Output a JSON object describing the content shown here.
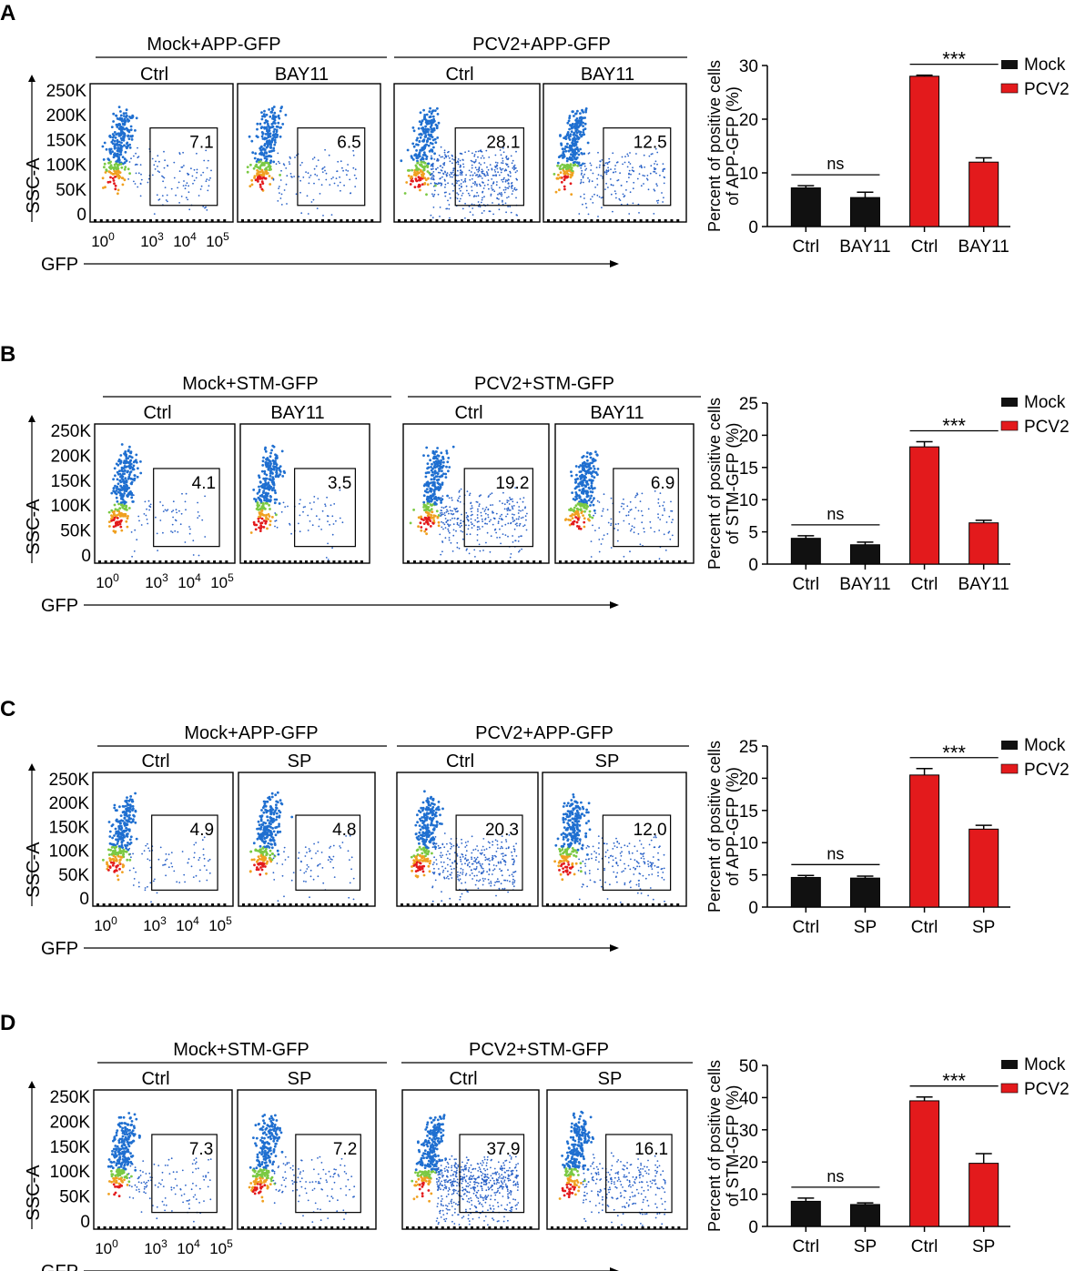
{
  "colors": {
    "mock": "#111111",
    "pcv2": "#e31a1c",
    "axis": "#000000"
  },
  "legend": {
    "mock_label": "Mock",
    "pcv2_label": "PCV2"
  },
  "flow_axes": {
    "y_label": "SSC-A",
    "x_label": "GFP",
    "y_ticks": [
      "250K",
      "200K",
      "150K",
      "100K",
      "50K",
      "0"
    ],
    "x_ticks": [
      "10",
      "10",
      "10",
      "10"
    ],
    "x_tick_exponents": [
      "0",
      "3",
      "4",
      "5"
    ]
  },
  "panels": [
    {
      "letter": "A",
      "groups": [
        "Mock+APP-GFP",
        "PCV2+APP-GFP"
      ],
      "plots": [
        {
          "condition": "Ctrl",
          "value": "7.1"
        },
        {
          "condition": "BAY11",
          "value": "6.5"
        },
        {
          "condition": "Ctrl",
          "value": "28.1"
        },
        {
          "condition": "BAY11",
          "value": "12.5"
        }
      ]
    },
    {
      "letter": "B",
      "groups": [
        "Mock+STM-GFP",
        "PCV2+STM-GFP"
      ],
      "plots": [
        {
          "condition": "Ctrl",
          "value": "4.1"
        },
        {
          "condition": "BAY11",
          "value": "3.5"
        },
        {
          "condition": "Ctrl",
          "value": "19.2"
        },
        {
          "condition": "BAY11",
          "value": "6.9"
        }
      ]
    },
    {
      "letter": "C",
      "groups": [
        "Mock+APP-GFP",
        "PCV2+APP-GFP"
      ],
      "plots": [
        {
          "condition": "Ctrl",
          "value": "4.9"
        },
        {
          "condition": "SP",
          "value": "4.8"
        },
        {
          "condition": "Ctrl",
          "value": "20.3"
        },
        {
          "condition": "SP",
          "value": "12.0"
        }
      ]
    },
    {
      "letter": "D",
      "groups": [
        "Mock+STM-GFP",
        "PCV2+STM-GFP"
      ],
      "plots": [
        {
          "condition": "Ctrl",
          "value": "7.3"
        },
        {
          "condition": "SP",
          "value": "7.2"
        },
        {
          "condition": "Ctrl",
          "value": "37.9"
        },
        {
          "condition": "SP",
          "value": "16.1"
        }
      ]
    }
  ],
  "chart_data": [
    {
      "type": "bar",
      "panel": "A",
      "ylabel_line1": "Percent of positive cells",
      "ylabel_line2": "of APP-GFP (%)",
      "categories": [
        "Ctrl",
        "BAY11",
        "Ctrl",
        "BAY11"
      ],
      "series": [
        "Mock",
        "Mock",
        "PCV2",
        "PCV2"
      ],
      "values": [
        7.2,
        5.4,
        28.0,
        12.0
      ],
      "errors": [
        0.4,
        1.0,
        0.2,
        0.8
      ],
      "ylim": [
        0,
        30
      ],
      "yticks": [
        0,
        10,
        20,
        30
      ],
      "annotations": [
        {
          "text": "ns",
          "from": 0,
          "to": 1
        },
        {
          "text": "***",
          "from": 2,
          "to": 3
        }
      ]
    },
    {
      "type": "bar",
      "panel": "B",
      "ylabel_line1": "Percent of positive cells",
      "ylabel_line2": "of STM-GFP (%)",
      "categories": [
        "Ctrl",
        "BAY11",
        "Ctrl",
        "BAY11"
      ],
      "series": [
        "Mock",
        "Mock",
        "PCV2",
        "PCV2"
      ],
      "values": [
        4.0,
        3.0,
        18.2,
        6.4
      ],
      "errors": [
        0.4,
        0.4,
        0.8,
        0.4
      ],
      "ylim": [
        0,
        25
      ],
      "yticks": [
        0,
        5,
        10,
        15,
        20,
        25
      ],
      "annotations": [
        {
          "text": "ns",
          "from": 0,
          "to": 1
        },
        {
          "text": "***",
          "from": 2,
          "to": 3
        }
      ]
    },
    {
      "type": "bar",
      "panel": "C",
      "ylabel_line1": "Percent of positive cells",
      "ylabel_line2": "of APP-GFP (%)",
      "categories": [
        "Ctrl",
        "SP",
        "Ctrl",
        "SP"
      ],
      "series": [
        "Mock",
        "Mock",
        "PCV2",
        "PCV2"
      ],
      "values": [
        4.6,
        4.5,
        20.5,
        12.1
      ],
      "errors": [
        0.3,
        0.3,
        1.0,
        0.6
      ],
      "ylim": [
        0,
        25
      ],
      "yticks": [
        0,
        5,
        10,
        15,
        20,
        25
      ],
      "annotations": [
        {
          "text": "ns",
          "from": 0,
          "to": 1
        },
        {
          "text": "***",
          "from": 2,
          "to": 3
        }
      ]
    },
    {
      "type": "bar",
      "panel": "D",
      "ylabel_line1": "Percent of positive cells",
      "ylabel_line2": "of STM-GFP (%)",
      "categories": [
        "Ctrl",
        "SP",
        "Ctrl",
        "SP"
      ],
      "series": [
        "Mock",
        "Mock",
        "PCV2",
        "PCV2"
      ],
      "values": [
        7.8,
        6.8,
        39.0,
        19.6
      ],
      "errors": [
        1.0,
        0.5,
        1.2,
        3.0
      ],
      "ylim": [
        0,
        50
      ],
      "yticks": [
        0,
        10,
        20,
        30,
        40,
        50
      ],
      "annotations": [
        {
          "text": "ns",
          "from": 0,
          "to": 1
        },
        {
          "text": "***",
          "from": 2,
          "to": 3
        }
      ]
    }
  ]
}
